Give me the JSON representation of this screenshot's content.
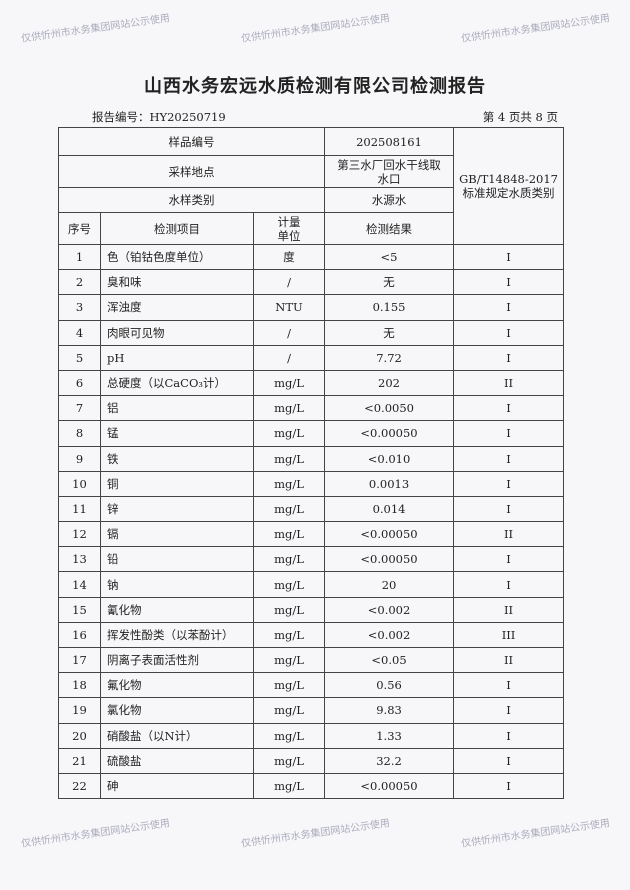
{
  "header": {
    "title": "山西水务宏远水质检测有限公司检测报告",
    "report_number": "报告编号：HY20250719",
    "page_info": "第 4 页共 8 页"
  },
  "table": {
    "sample_no_label": "样品编号",
    "sample_no": "202508161",
    "location_label": "采样地点",
    "location": "第三水厂回水干线取水口",
    "type_label": "水样类别",
    "type": "水源水",
    "standard": "GB/T14848-2017 标准规定水质类别",
    "col_seq": "序号",
    "col_item": "检测项目",
    "col_unit": "计量单位",
    "col_result": "检测结果",
    "rows": [
      {
        "no": "1",
        "item": "色（铂钴色度单位）",
        "unit": "度",
        "result": "<5",
        "class": "I"
      },
      {
        "no": "2",
        "item": "臭和味",
        "unit": "/",
        "result": "无",
        "class": "I"
      },
      {
        "no": "3",
        "item": "浑浊度",
        "unit": "NTU",
        "result": "0.155",
        "class": "I"
      },
      {
        "no": "4",
        "item": "肉眼可见物",
        "unit": "/",
        "result": "无",
        "class": "I"
      },
      {
        "no": "5",
        "item": "pH",
        "unit": "/",
        "result": "7.72",
        "class": "I"
      },
      {
        "no": "6",
        "item": "总硬度（以CaCO₃计）",
        "unit": "mg/L",
        "result": "202",
        "class": "II"
      },
      {
        "no": "7",
        "item": "铝",
        "unit": "mg/L",
        "result": "<0.0050",
        "class": "I"
      },
      {
        "no": "8",
        "item": "锰",
        "unit": "mg/L",
        "result": "<0.00050",
        "class": "I"
      },
      {
        "no": "9",
        "item": "铁",
        "unit": "mg/L",
        "result": "<0.010",
        "class": "I"
      },
      {
        "no": "10",
        "item": "铜",
        "unit": "mg/L",
        "result": "0.0013",
        "class": "I"
      },
      {
        "no": "11",
        "item": "锌",
        "unit": "mg/L",
        "result": "0.014",
        "class": "I"
      },
      {
        "no": "12",
        "item": "镉",
        "unit": "mg/L",
        "result": "<0.00050",
        "class": "II"
      },
      {
        "no": "13",
        "item": "铅",
        "unit": "mg/L",
        "result": "<0.00050",
        "class": "I"
      },
      {
        "no": "14",
        "item": "钠",
        "unit": "mg/L",
        "result": "20",
        "class": "I"
      },
      {
        "no": "15",
        "item": "氰化物",
        "unit": "mg/L",
        "result": "<0.002",
        "class": "II"
      },
      {
        "no": "16",
        "item": "挥发性酚类（以苯酚计）",
        "unit": "mg/L",
        "result": "<0.002",
        "class": "III"
      },
      {
        "no": "17",
        "item": "阴离子表面活性剂",
        "unit": "mg/L",
        "result": "<0.05",
        "class": "II"
      },
      {
        "no": "18",
        "item": "氟化物",
        "unit": "mg/L",
        "result": "0.56",
        "class": "I"
      },
      {
        "no": "19",
        "item": "氯化物",
        "unit": "mg/L",
        "result": "9.83",
        "class": "I"
      },
      {
        "no": "20",
        "item": "硝酸盐（以N计）",
        "unit": "mg/L",
        "result": "1.33",
        "class": "I"
      },
      {
        "no": "21",
        "item": "硫酸盐",
        "unit": "mg/L",
        "result": "32.2",
        "class": "I"
      },
      {
        "no": "22",
        "item": "砷",
        "unit": "mg/L",
        "result": "<0.00050",
        "class": "I"
      }
    ]
  },
  "watermark": "仅供忻州市水务集团网站公示使用"
}
